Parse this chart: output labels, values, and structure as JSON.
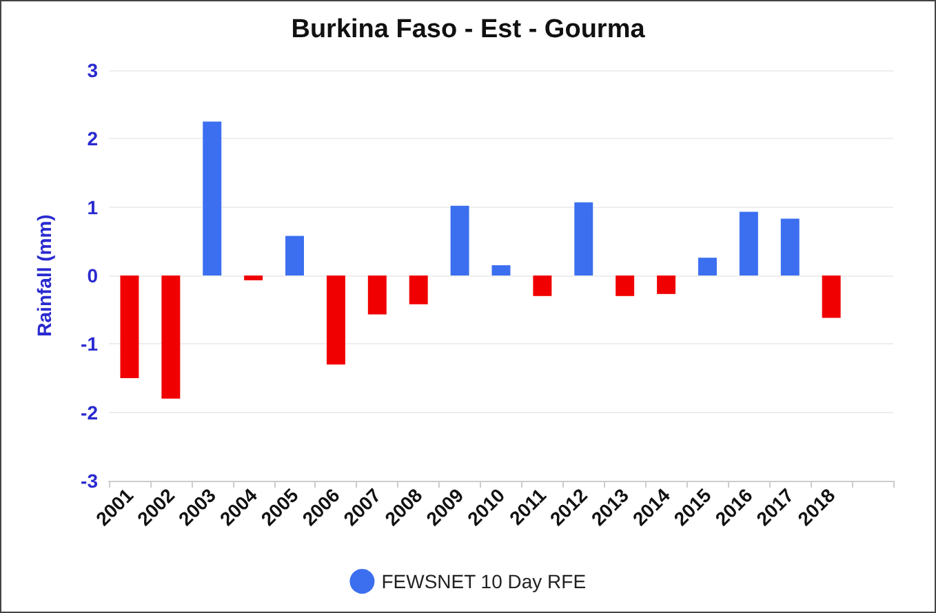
{
  "chart_data": {
    "type": "bar",
    "title": "Burkina Faso - Est - Gourma",
    "ylabel": "Rainfall (mm)",
    "categories": [
      "2001",
      "2002",
      "2003",
      "2004",
      "2005",
      "2006",
      "2007",
      "2008",
      "2009",
      "2010",
      "2011",
      "2012",
      "2013",
      "2014",
      "2015",
      "2016",
      "2017",
      "2018",
      null
    ],
    "series": [
      {
        "name": "FEWSNET 10 Day RFE",
        "color": "#3b6ff0",
        "values": [
          -1.5,
          -1.8,
          2.25,
          -0.07,
          0.58,
          -1.3,
          -0.57,
          -0.42,
          1.02,
          0.15,
          -0.3,
          1.07,
          -0.3,
          -0.27,
          0.26,
          0.93,
          0.83,
          -0.62,
          null
        ],
        "colors": [
          "#f00000",
          "#f00000",
          "#3b6ff0",
          "#f00000",
          "#3b6ff0",
          "#f00000",
          "#f00000",
          "#f00000",
          "#3b6ff0",
          "#3b6ff0",
          "#f00000",
          "#3b6ff0",
          "#f00000",
          "#f00000",
          "#3b6ff0",
          "#3b6ff0",
          "#3b6ff0",
          "#f00000",
          null
        ]
      }
    ],
    "ylim": [
      -3,
      3
    ],
    "yticks": [
      -3,
      -2,
      -1,
      0,
      1,
      2,
      3
    ],
    "grid": "y",
    "legend": "bottom"
  }
}
